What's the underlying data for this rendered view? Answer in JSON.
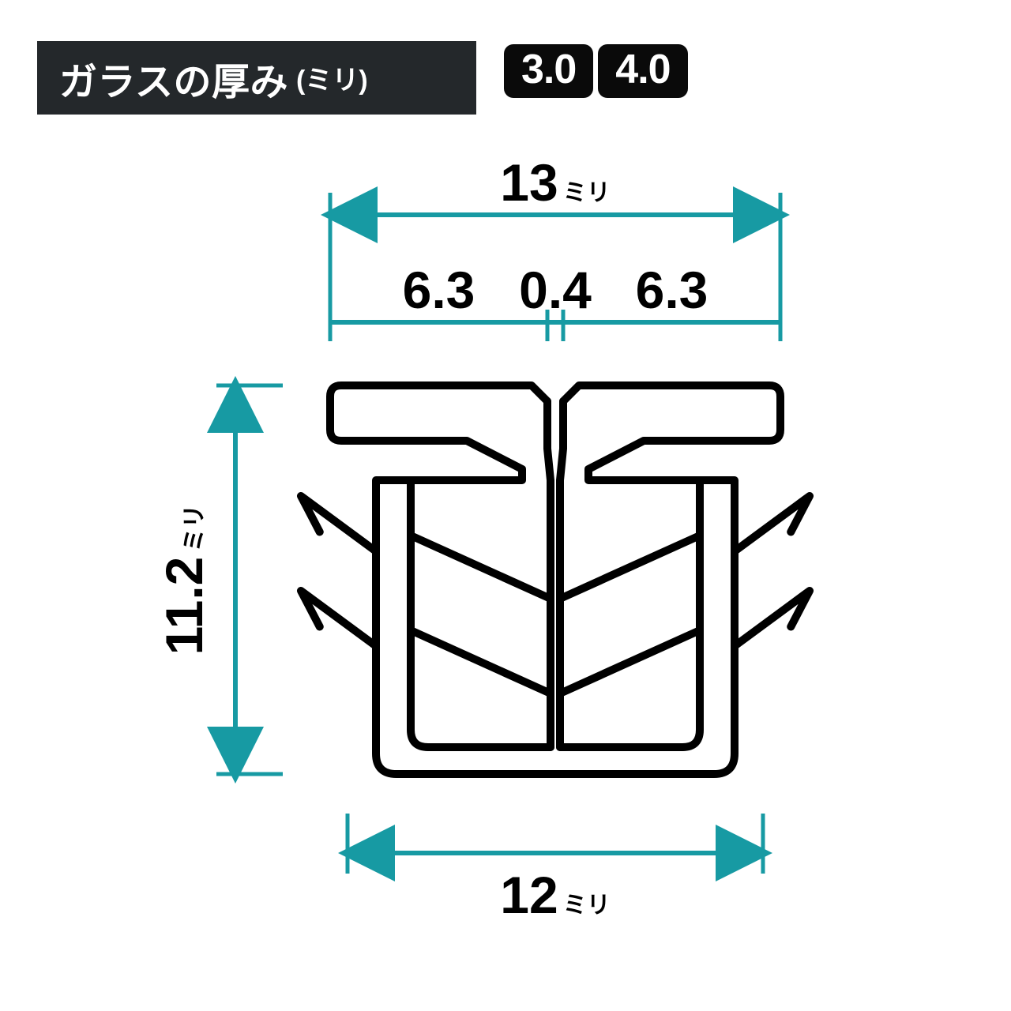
{
  "header": {
    "title": "ガラスの厚み",
    "unit": "(ミリ)",
    "values": [
      "3.0",
      "4.0"
    ]
  },
  "unit_suffix": "ミリ",
  "colors": {
    "dimension": "#179aa3",
    "outline": "#000000",
    "background": "#ffffff",
    "header_bg": "#24282b",
    "chip_bg": "#0a0a0a",
    "text": "#000000",
    "header_text": "#ffffff"
  },
  "dimensions": {
    "top_total": "13",
    "top_left": "6.3",
    "top_center": "0.4",
    "top_right": "6.3",
    "height": "11.2",
    "bottom_width": "12"
  },
  "stroke": {
    "profile_width": 10,
    "dim_width": 6,
    "tick_width": 5
  },
  "font": {
    "dim_size": 66,
    "unit_size": 30
  }
}
